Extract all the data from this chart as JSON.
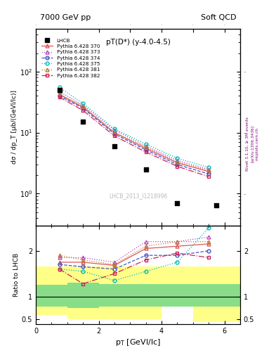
{
  "title_left": "7000 GeV pp",
  "title_right": "Soft QCD",
  "plot_title": "pT(D*) (y-4.0-4.5)",
  "watermark": "LHCB_2013_I1218996",
  "right_label1": "Rivet 3.1.10, ≥ 3M events",
  "right_label2": "[arXiv:1306.3436]",
  "right_label3": "mcplots.cern.ch",
  "xlabel": "p_{T} [GeVl/lc]",
  "ylabel": "dσ / dp_T [μb/(GeVl/lc)]",
  "ylabel_ratio": "Ratio to LHCB",
  "lhcb_pt": [
    0.75,
    1.5,
    2.5,
    3.5,
    4.5,
    5.75
  ],
  "lhcb_y": [
    50.0,
    15.0,
    6.0,
    2.5,
    0.7,
    0.65
  ],
  "series": [
    {
      "label": "Pythia 6.428 370",
      "color": "#dd5555",
      "linestyle": "-",
      "marker": "^",
      "pt": [
        0.75,
        1.5,
        2.5,
        3.5,
        4.5,
        5.5
      ],
      "y": [
        42.0,
        26.0,
        10.0,
        5.5,
        3.2,
        2.3
      ],
      "ratio": [
        1.75,
        1.75,
        1.68,
        2.05,
        2.1,
        2.15
      ]
    },
    {
      "label": "Pythia 6.428 373",
      "color": "#bb44bb",
      "linestyle": ":",
      "marker": "^",
      "pt": [
        0.75,
        1.5,
        2.5,
        3.5,
        4.5,
        5.5
      ],
      "y": [
        47.0,
        28.0,
        11.0,
        6.0,
        3.5,
        2.5
      ],
      "ratio": [
        1.85,
        1.85,
        1.75,
        2.2,
        2.2,
        2.3
      ]
    },
    {
      "label": "Pythia 6.428 374",
      "color": "#4455cc",
      "linestyle": "--",
      "marker": "o",
      "pt": [
        0.75,
        1.5,
        2.5,
        3.5,
        4.5,
        5.5
      ],
      "y": [
        40.0,
        25.0,
        9.5,
        5.2,
        3.0,
        2.1
      ],
      "ratio": [
        1.7,
        1.65,
        1.6,
        1.9,
        1.9,
        2.0
      ]
    },
    {
      "label": "Pythia 6.428 375",
      "color": "#00bbbb",
      "linestyle": ":",
      "marker": "o",
      "pt": [
        0.75,
        1.5,
        2.5,
        3.5,
        4.5,
        5.5
      ],
      "y": [
        55.0,
        30.0,
        11.5,
        6.5,
        3.8,
        2.7
      ],
      "ratio": [
        1.6,
        1.55,
        1.35,
        1.55,
        1.75,
        2.5
      ]
    },
    {
      "label": "Pythia 6.428 381",
      "color": "#bb7733",
      "linestyle": ":",
      "marker": "^",
      "pt": [
        0.75,
        1.5,
        2.5,
        3.5,
        4.5,
        5.5
      ],
      "y": [
        43.0,
        27.0,
        10.0,
        5.8,
        3.3,
        2.4
      ],
      "ratio": [
        1.9,
        1.8,
        1.7,
        2.1,
        2.2,
        2.2
      ]
    },
    {
      "label": "Pythia 6.428 382",
      "color": "#cc2255",
      "linestyle": "-.",
      "marker": "s",
      "pt": [
        0.75,
        1.5,
        2.5,
        3.5,
        4.5,
        5.5
      ],
      "y": [
        38.0,
        23.0,
        8.8,
        4.8,
        2.8,
        1.9
      ],
      "ratio": [
        1.6,
        1.28,
        1.5,
        1.8,
        1.95,
        1.85
      ]
    }
  ],
  "ratio_yellow_edges": [
    0.0,
    1.0,
    2.0,
    3.0,
    4.0,
    5.0,
    6.5
  ],
  "ratio_yellow_lo": [
    0.6,
    0.5,
    0.5,
    0.5,
    0.78,
    0.44,
    0.44
  ],
  "ratio_yellow_hi": [
    1.65,
    1.65,
    1.65,
    1.65,
    1.65,
    1.65,
    1.65
  ],
  "ratio_green_edges": [
    0.0,
    1.0,
    2.0,
    3.0,
    4.0,
    5.0,
    6.5
  ],
  "ratio_green_lo": [
    0.78,
    0.75,
    0.78,
    0.78,
    0.78,
    0.78,
    0.78
  ],
  "ratio_green_hi": [
    1.25,
    1.3,
    1.28,
    1.28,
    1.28,
    1.28,
    1.28
  ],
  "ylim_main": [
    0.3,
    500
  ],
  "ylim_ratio": [
    0.4,
    2.55
  ],
  "xlim": [
    0.0,
    6.5
  ],
  "ratio_yticks": [
    0.5,
    1.0,
    2.0
  ]
}
